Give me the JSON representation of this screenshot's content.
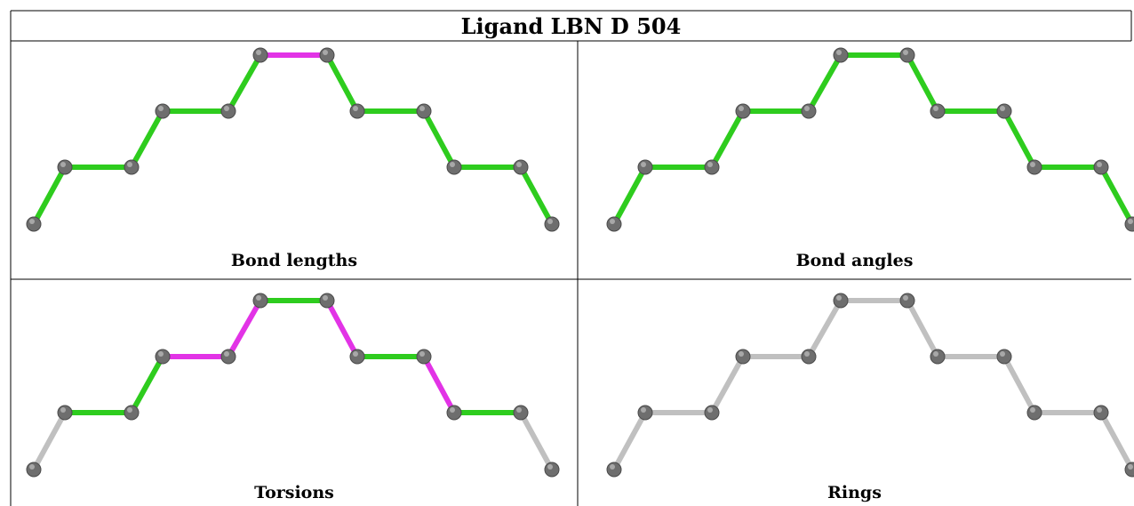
{
  "title": "Ligand LBN D 504",
  "colors": {
    "ok_bond": "#2ecc1e",
    "outlier_bond": "#e233e6",
    "neutral_bond": "#c0c0c0",
    "atom": "#6e6e6e"
  },
  "panels": [
    {
      "caption": "Bond lengths",
      "bond_status": [
        "ok",
        "ok",
        "ok",
        "ok",
        "ok",
        "outlier",
        "ok",
        "ok",
        "ok",
        "ok",
        "ok"
      ]
    },
    {
      "caption": "Bond angles",
      "bond_status": [
        "ok",
        "ok",
        "ok",
        "ok",
        "ok",
        "ok",
        "ok",
        "ok",
        "ok",
        "ok",
        "ok"
      ]
    },
    {
      "caption": "Torsions",
      "bond_status": [
        "neutral",
        "ok",
        "ok",
        "outlier",
        "outlier",
        "ok",
        "outlier",
        "ok",
        "outlier",
        "ok",
        "neutral"
      ]
    },
    {
      "caption": "Rings",
      "bond_status": [
        "neutral",
        "neutral",
        "neutral",
        "neutral",
        "neutral",
        "neutral",
        "neutral",
        "neutral",
        "neutral",
        "neutral",
        "neutral"
      ]
    }
  ]
}
